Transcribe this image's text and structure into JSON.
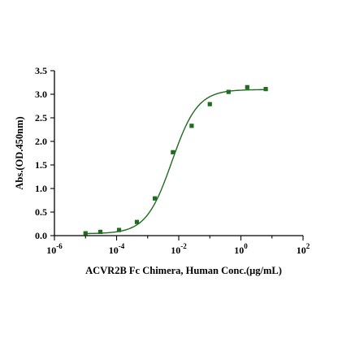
{
  "chart_data": {
    "type": "scatter",
    "xlabel": "ACVR2B Fc Chimera, Human Conc.(μg/mL)",
    "ylabel": "Abs.(OD.450nm)",
    "x_scale": "log",
    "xlim": [
      1e-06,
      100
    ],
    "ylim": [
      0,
      3.5
    ],
    "x_ticks": [
      {
        "value": 1e-06,
        "base": "10",
        "exp": "-6"
      },
      {
        "value": 0.0001,
        "base": "10",
        "exp": "-4"
      },
      {
        "value": 0.01,
        "base": "10",
        "exp": "-2"
      },
      {
        "value": 1,
        "base": "10",
        "exp": "0"
      },
      {
        "value": 100,
        "base": "10",
        "exp": "2"
      }
    ],
    "y_ticks": [
      "0.0",
      "0.5",
      "1.0",
      "1.5",
      "2.0",
      "2.5",
      "3.0",
      "3.5"
    ],
    "grid": false,
    "legend": "none",
    "series": [
      {
        "marker": "square",
        "color": "#1f6b1f",
        "fit": "four-parameter logistic",
        "x": [
          1e-05,
          3e-05,
          0.00012,
          0.00045,
          0.0017,
          0.0065,
          0.026,
          0.1,
          0.4,
          1.6,
          6.3
        ],
        "y": [
          0.05,
          0.08,
          0.12,
          0.29,
          0.79,
          1.77,
          2.33,
          2.79,
          3.05,
          3.15,
          3.11
        ]
      }
    ],
    "fit_params": {
      "bottom": 0.04,
      "top": 3.1,
      "ec50": 0.006,
      "hill": 1.05
    }
  }
}
